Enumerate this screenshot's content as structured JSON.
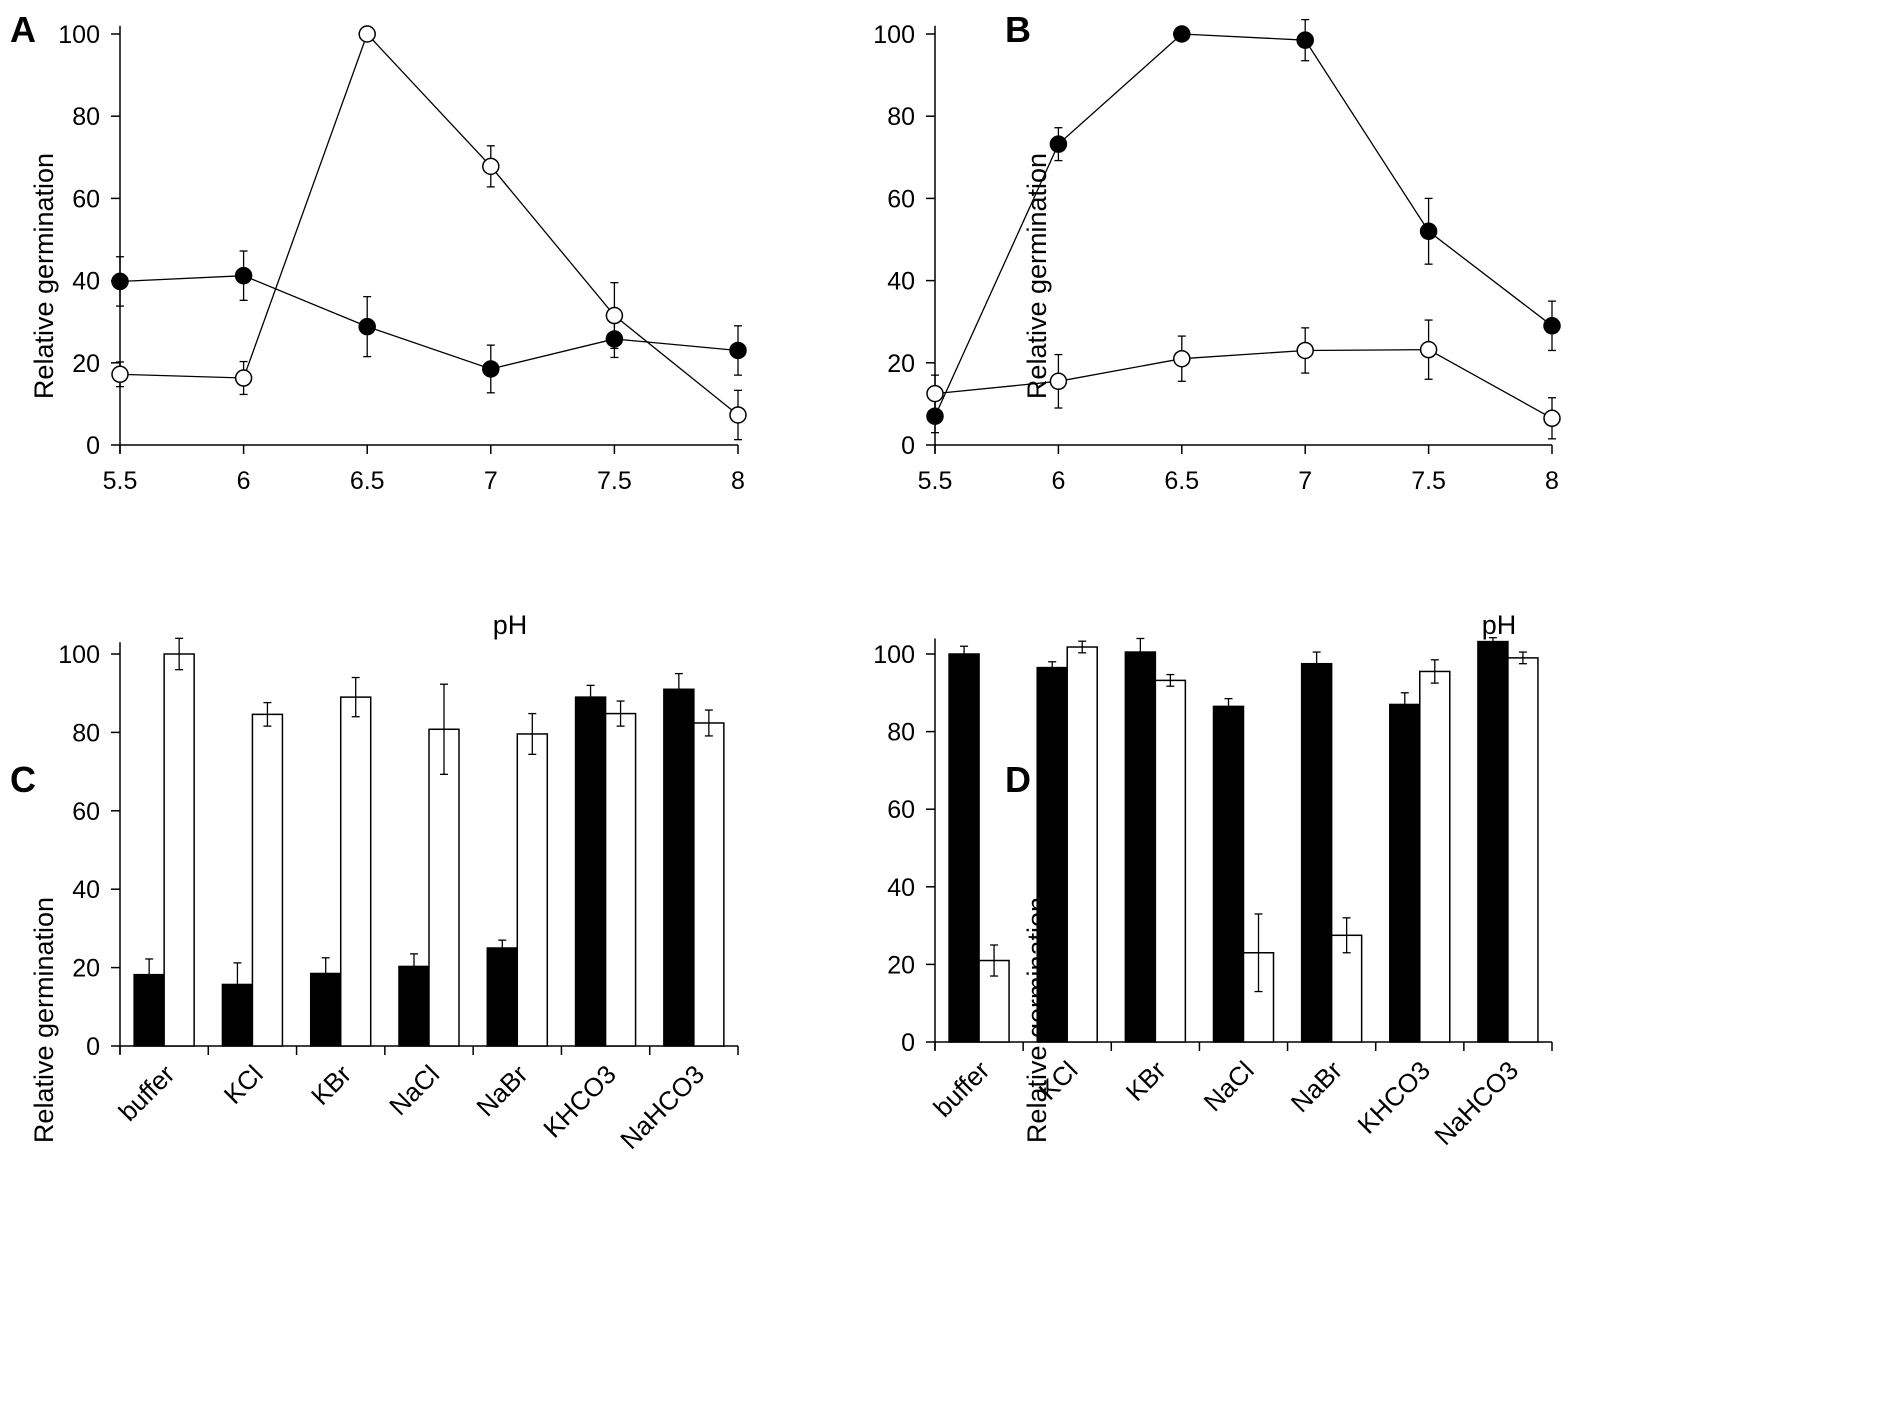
{
  "chart_data": [
    {
      "panel": "A",
      "type": "line",
      "xlabel": "pH",
      "ylabel": "Relative germination",
      "x": [
        5.5,
        6,
        6.5,
        7,
        7.5,
        8
      ],
      "xticks": [
        "5.5",
        "6",
        "6.5",
        "7",
        "7.5",
        "8"
      ],
      "ylim": [
        0,
        100
      ],
      "yticks": [
        "0",
        "20",
        "40",
        "60",
        "80",
        "100"
      ],
      "series": [
        {
          "name": "filled",
          "marker": "filled",
          "color": "#000000",
          "values": [
            39.8,
            41.2,
            28.8,
            18.5,
            25.8,
            23.0
          ],
          "errors": [
            6.0,
            6.0,
            7.3,
            5.8,
            4.5,
            6.0
          ]
        },
        {
          "name": "open",
          "marker": "open",
          "color": "#ffffff",
          "values": [
            17.2,
            16.3,
            100,
            67.8,
            31.5,
            7.3
          ],
          "errors": [
            3.0,
            4.0,
            0,
            5.0,
            8.0,
            6.0
          ]
        }
      ]
    },
    {
      "panel": "B",
      "type": "line",
      "xlabel": "pH",
      "ylabel": "Relative germination",
      "x": [
        5.5,
        6,
        6.5,
        7,
        7.5,
        8
      ],
      "xticks": [
        "5.5",
        "6",
        "6.5",
        "7",
        "7.5",
        "8"
      ],
      "ylim": [
        0,
        100
      ],
      "yticks": [
        "0",
        "20",
        "40",
        "60",
        "80",
        "100"
      ],
      "series": [
        {
          "name": "filled",
          "marker": "filled",
          "color": "#000000",
          "values": [
            7.0,
            73.2,
            100,
            98.5,
            52.0,
            29.0
          ],
          "errors": [
            4.0,
            4.0,
            0,
            5.0,
            8.0,
            6.0
          ]
        },
        {
          "name": "open",
          "marker": "open",
          "color": "#ffffff",
          "values": [
            12.5,
            15.5,
            21.0,
            23.0,
            23.2,
            6.5
          ],
          "errors": [
            4.5,
            6.5,
            5.5,
            5.5,
            7.2,
            5.0
          ]
        }
      ]
    },
    {
      "panel": "C",
      "type": "bar",
      "ylabel": "Relative germination",
      "categories": [
        "buffer",
        "KCl",
        "KBr",
        "NaCl",
        "NaBr",
        "KHCO3",
        "NaHCO3"
      ],
      "ylim": [
        0,
        100
      ],
      "yticks": [
        "0",
        "20",
        "40",
        "60",
        "80",
        "100"
      ],
      "series": [
        {
          "name": "filled",
          "color": "#000000",
          "values": [
            18.2,
            15.7,
            18.5,
            20.3,
            25.0,
            89.0,
            91.0
          ],
          "errors": [
            4.0,
            5.5,
            4.0,
            3.2,
            2.0,
            3.0,
            4.0
          ]
        },
        {
          "name": "open",
          "color": "#ffffff",
          "values": [
            100,
            84.6,
            89.0,
            80.8,
            79.6,
            84.8,
            82.4
          ],
          "errors": [
            4.0,
            3.0,
            5.0,
            11.5,
            5.2,
            3.2,
            3.3
          ]
        }
      ]
    },
    {
      "panel": "D",
      "type": "bar",
      "ylabel": "Relative germination",
      "categories": [
        "buffer",
        "KCl",
        "KBr",
        "NaCl",
        "NaBr",
        "KHCO3",
        "NaHCO3"
      ],
      "ylim": [
        0,
        100
      ],
      "yticks": [
        "0",
        "20",
        "40",
        "60",
        "80",
        "100"
      ],
      "series": [
        {
          "name": "filled",
          "color": "#000000",
          "values": [
            100,
            96.5,
            100.5,
            86.5,
            97.5,
            87.0,
            103.2
          ],
          "errors": [
            2.0,
            1.5,
            3.5,
            2.0,
            3.0,
            3.0,
            1.0
          ]
        },
        {
          "name": "open",
          "color": "#ffffff",
          "values": [
            21.0,
            101.8,
            93.2,
            23.0,
            27.5,
            95.5,
            99.0
          ],
          "errors": [
            4.0,
            1.5,
            1.5,
            10.0,
            4.5,
            3.0,
            1.5
          ]
        }
      ]
    }
  ]
}
